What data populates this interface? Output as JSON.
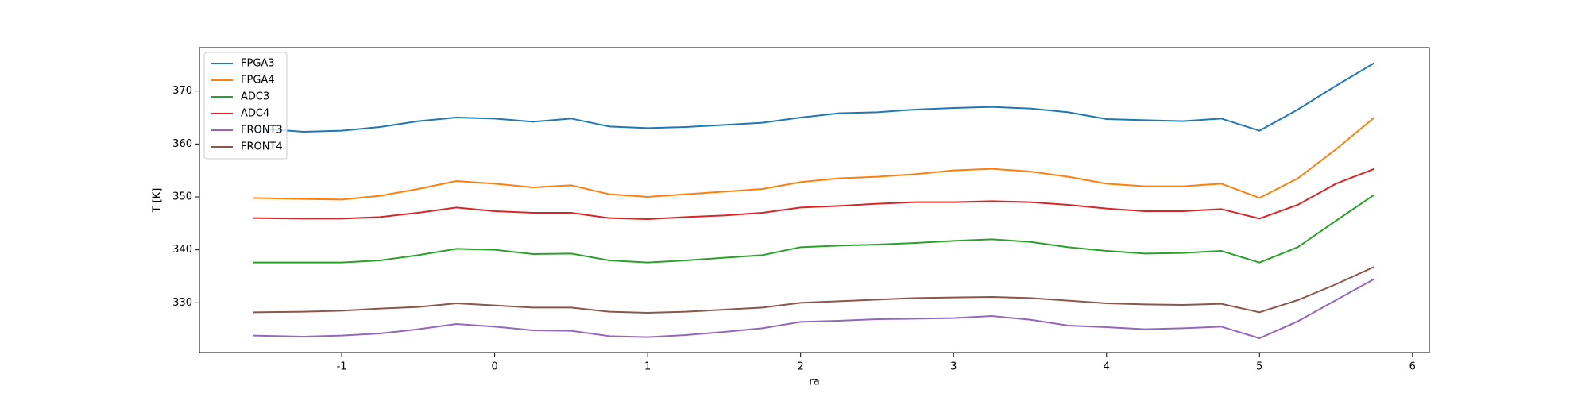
{
  "chart_data": {
    "type": "line",
    "x_label": "ra",
    "y_label": "T [K]",
    "x": [
      -1.58,
      -1.25,
      -1.0,
      -0.75,
      -0.5,
      -0.25,
      0,
      0.25,
      0.5,
      0.75,
      1.0,
      1.25,
      1.5,
      1.75,
      2.0,
      2.25,
      2.5,
      2.75,
      3.0,
      3.25,
      3.5,
      3.75,
      4.0,
      4.25,
      4.5,
      4.75,
      5.0,
      5.25,
      5.5,
      5.75
    ],
    "series": [
      {
        "name": "FPGA3",
        "color": "#1f77b4",
        "values": [
          363,
          362.3,
          362.5,
          363.2,
          364.3,
          365,
          364.8,
          364.2,
          364.8,
          363.3,
          363,
          363.2,
          363.6,
          364,
          365,
          365.8,
          366,
          366.5,
          366.8,
          367,
          366.7,
          366,
          364.7,
          364.5,
          364.3,
          364.8,
          362.5,
          366.5,
          371,
          375.3
        ]
      },
      {
        "name": "FPGA4",
        "color": "#ff7f0e",
        "values": [
          349.8,
          349.6,
          349.5,
          350.2,
          351.5,
          353,
          352.5,
          351.8,
          352.2,
          350.5,
          350,
          350.5,
          351,
          351.5,
          352.8,
          353.5,
          353.8,
          354.3,
          355,
          355.3,
          354.8,
          353.8,
          352.5,
          352,
          352,
          352.5,
          349.8,
          353.5,
          359,
          365
        ]
      },
      {
        "name": "ADC3",
        "color": "#2ca02c",
        "values": [
          337.6,
          337.6,
          337.6,
          338,
          339,
          340.2,
          340,
          339.2,
          339.3,
          338,
          337.6,
          338,
          338.5,
          339,
          340.5,
          340.8,
          341,
          341.3,
          341.7,
          342,
          341.5,
          340.5,
          339.8,
          339.3,
          339.4,
          339.8,
          337.6,
          340.5,
          345.5,
          350.4
        ]
      },
      {
        "name": "ADC4",
        "color": "#d62728",
        "values": [
          346,
          345.9,
          345.9,
          346.2,
          347,
          348,
          347.3,
          347,
          347,
          346,
          345.8,
          346.2,
          346.5,
          347,
          348,
          348.3,
          348.7,
          349,
          349,
          349.2,
          349,
          348.5,
          347.8,
          347.3,
          347.3,
          347.7,
          345.9,
          348.5,
          352.5,
          355.3
        ]
      },
      {
        "name": "FRONT3",
        "color": "#9467bd",
        "values": [
          323.8,
          323.6,
          323.8,
          324.2,
          325,
          326,
          325.5,
          324.8,
          324.7,
          323.7,
          323.5,
          323.9,
          324.5,
          325.2,
          326.4,
          326.6,
          326.9,
          327,
          327.1,
          327.5,
          326.8,
          325.7,
          325.4,
          325,
          325.2,
          325.5,
          323.3,
          326.5,
          330.5,
          334.5
        ]
      },
      {
        "name": "FRONT4",
        "color": "#8c564b",
        "values": [
          328.2,
          328.3,
          328.5,
          328.9,
          329.2,
          329.9,
          329.5,
          329.1,
          329.1,
          328.3,
          328.1,
          328.3,
          328.7,
          329.1,
          330,
          330.3,
          330.6,
          330.9,
          331,
          331.1,
          330.9,
          330.4,
          329.9,
          329.7,
          329.6,
          329.8,
          328.2,
          330.5,
          333.5,
          336.8
        ]
      }
    ],
    "xlim": [
      -1.93,
      6.11
    ],
    "ylim": [
      320.6,
      378.2
    ],
    "xticks": [
      -1,
      0,
      1,
      2,
      3,
      4,
      5,
      6
    ],
    "yticks": [
      330,
      340,
      350,
      360,
      370
    ],
    "legend": "upper-left",
    "grid": false
  }
}
